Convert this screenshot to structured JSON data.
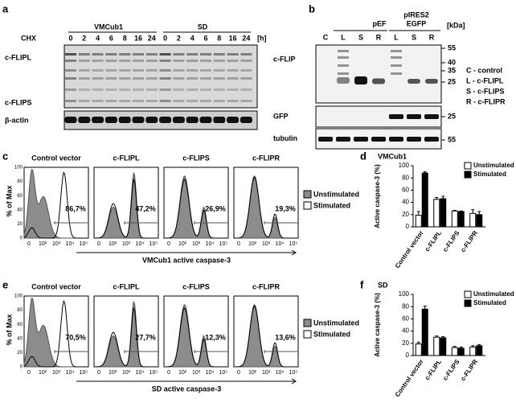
{
  "panel_a": {
    "label": "a",
    "groups": [
      "VMCub1",
      "SD"
    ],
    "treatment": "CHX",
    "times": [
      0,
      2,
      4,
      6,
      8,
      16,
      24,
      0,
      2,
      4,
      6,
      8,
      16,
      24
    ],
    "unit": "[h]",
    "bands": [
      "c-FLIPL",
      "c-FLIPS"
    ],
    "loading": "β-actin"
  },
  "panel_b": {
    "label": "b",
    "vectors": [
      "pEF",
      "pIRES2",
      "EGFP"
    ],
    "lanes": [
      "C",
      "L",
      "S",
      "R",
      "L",
      "S",
      "R"
    ],
    "unit": "[kDa]",
    "blots": [
      "c-FLIP",
      "GFP",
      "tubulin"
    ],
    "markers": [
      [
        55,
        40,
        35,
        25
      ],
      [
        25
      ],
      [
        55
      ]
    ],
    "key": [
      "C - control",
      "L - c-FLIPL",
      "S - c-FLIPS",
      "R - c-FLIPR"
    ]
  },
  "flow_panels": [
    {
      "label": "c",
      "titles": [
        "Control vector",
        "c-FLIPL",
        "c-FLIPS",
        "c-FLIPR"
      ],
      "percentages": [
        "86,7%",
        "47,2%",
        "26,9%",
        "19,3%"
      ],
      "x_label": "VMCub1 active caspase-3",
      "y_label": "% of Max",
      "yticks": [
        0,
        20,
        40,
        60,
        80,
        100
      ],
      "xticks": [
        "0",
        "10²",
        "10³",
        "10⁴",
        "10⁵"
      ],
      "legend": [
        "Unstimulated",
        "Stimulated"
      ]
    },
    {
      "label": "e",
      "titles": [
        "Control vector",
        "c-FLIPL",
        "c-FLIPS",
        "c-FLIPR"
      ],
      "percentages": [
        "70,5%",
        "27,7%",
        "12,3%",
        "13,6%"
      ],
      "x_label": "SD active caspase-3",
      "y_label": "% of Max",
      "yticks": [
        0,
        20,
        40,
        60,
        80,
        100
      ],
      "xticks": [
        "0",
        "10²",
        "10³",
        "10⁴",
        "10⁵"
      ],
      "legend": [
        "Unstimulated",
        "Stimulated"
      ]
    }
  ],
  "chart_data": [
    {
      "type": "bar",
      "panel_label": "d",
      "title": "VMCub1",
      "y_label": "Active caspase-3 (%)",
      "categories": [
        "Control vector",
        "c-FLIPL",
        "c-FLIPS",
        "c-FLIPR"
      ],
      "series": [
        {
          "name": "Unstimulated",
          "color": "#ffffff",
          "values": [
            19,
            45,
            26,
            22
          ],
          "errors": [
            6,
            3,
            1,
            6
          ]
        },
        {
          "name": "Stimulated",
          "color": "#000000",
          "values": [
            88,
            46,
            25,
            20
          ],
          "errors": [
            2,
            4,
            1,
            5
          ]
        }
      ],
      "ylim": [
        0,
        100
      ],
      "yticks": [
        0,
        20,
        40,
        60,
        80,
        100
      ]
    },
    {
      "type": "bar",
      "panel_label": "f",
      "title": "SD",
      "y_label": "Active caspase-3 (%)",
      "categories": [
        "Control vector",
        "c-FLIPL",
        "c-FLIPS",
        "c-FLIPR"
      ],
      "series": [
        {
          "name": "Unstimulated",
          "color": "#ffffff",
          "values": [
            19,
            30,
            13,
            14
          ],
          "errors": [
            3,
            2,
            2,
            2
          ]
        },
        {
          "name": "Stimulated",
          "color": "#000000",
          "values": [
            76,
            29,
            12,
            16
          ],
          "errors": [
            5,
            2,
            2,
            2
          ]
        }
      ],
      "ylim": [
        0,
        100
      ],
      "yticks": [
        0,
        20,
        40,
        60,
        80,
        100
      ]
    }
  ]
}
